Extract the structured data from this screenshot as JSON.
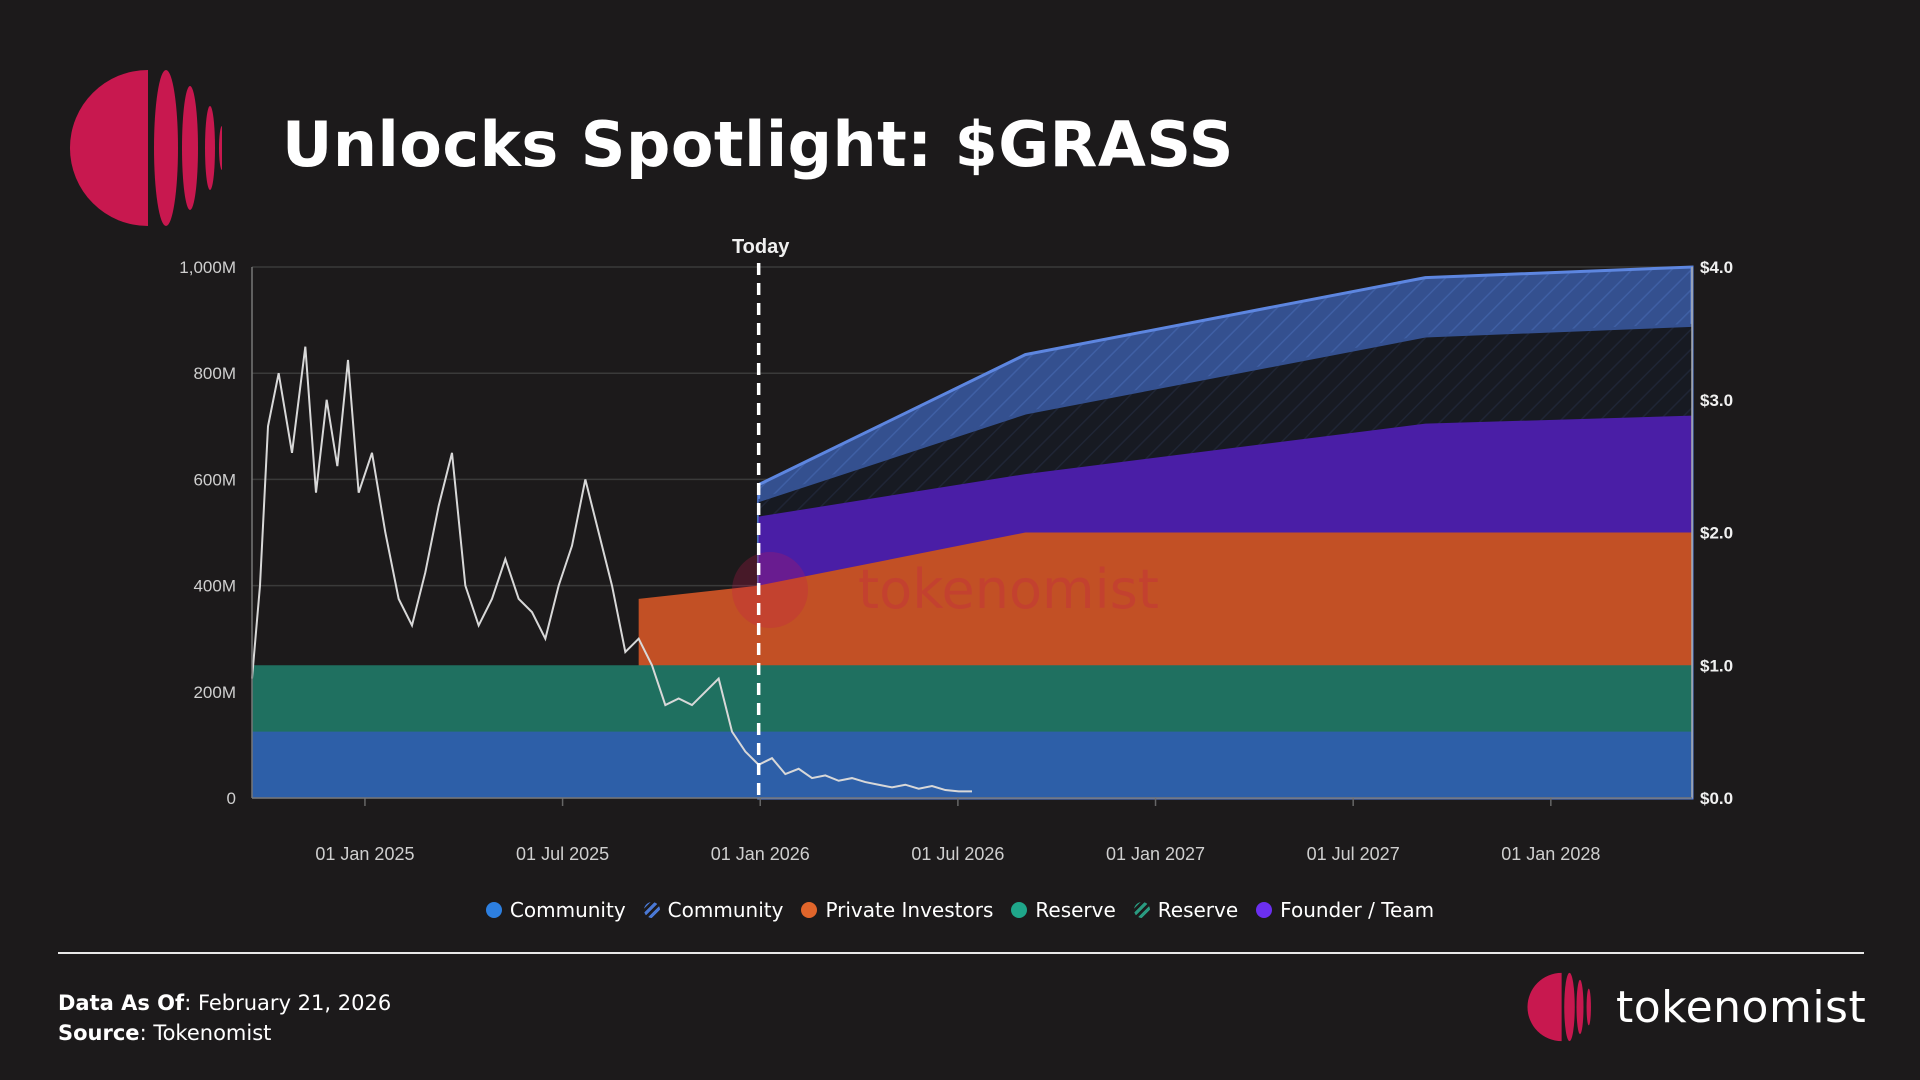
{
  "header": {
    "title": "Unlocks Spotlight: $GRASS"
  },
  "colors": {
    "background": "#1c1a1b",
    "brand_crimson": "#c8184f",
    "community": "#2d5fa8",
    "private_investors": "#c25025",
    "reserve": "#1f7060",
    "founder_team": "#4a1ea6"
  },
  "chart_data": {
    "type": "area",
    "today_label": "Today",
    "y_left_ticks": [
      "0",
      "200M",
      "400M",
      "600M",
      "800M",
      "1,000M"
    ],
    "y_right_ticks": [
      "$0.0",
      "$1.0",
      "$2.0",
      "$3.0",
      "$4.0"
    ],
    "x_ticks": [
      "01 Jan 2025",
      "01 Jul 2025",
      "01 Jan 2026",
      "01 Jul 2026",
      "01 Jan 2027",
      "01 Jul 2027",
      "01 Jan 2028"
    ],
    "ylim_left": [
      0,
      1000
    ],
    "ylim_right": [
      0,
      4
    ],
    "watermark": "tokenomist",
    "series": [
      {
        "name": "Community",
        "style": "solid",
        "values": [
          [
            0,
            125
          ],
          [
            54,
            125
          ]
        ]
      },
      {
        "name": "Reserve",
        "style": "solid",
        "values": [
          [
            0,
            250
          ],
          [
            54,
            250
          ]
        ]
      },
      {
        "name": "Private Investors",
        "style": "solid",
        "values": [
          [
            14.5,
            250
          ],
          [
            14.5,
            375
          ],
          [
            19,
            400
          ],
          [
            29,
            500
          ],
          [
            54,
            500
          ]
        ]
      },
      {
        "name": "Founder / Team",
        "style": "solid",
        "values": [
          [
            19,
            480
          ],
          [
            19,
            530
          ],
          [
            29,
            610
          ],
          [
            44,
            705
          ],
          [
            54,
            720
          ]
        ]
      },
      {
        "name": "Reserve",
        "style": "hatched",
        "values": [
          [
            19,
            560
          ],
          [
            29,
            725
          ],
          [
            44,
            870
          ],
          [
            54,
            890
          ]
        ]
      },
      {
        "name": "Community",
        "style": "hatched",
        "values": [
          [
            19,
            590
          ],
          [
            29,
            835
          ],
          [
            44,
            980
          ],
          [
            54,
            1000
          ]
        ]
      }
    ],
    "price_line": {
      "unit": "$",
      "values": [
        [
          0,
          0.9
        ],
        [
          0.3,
          1.6
        ],
        [
          0.6,
          2.8
        ],
        [
          1.0,
          3.2
        ],
        [
          1.5,
          2.6
        ],
        [
          2.0,
          3.4
        ],
        [
          2.4,
          2.3
        ],
        [
          2.8,
          3.0
        ],
        [
          3.2,
          2.5
        ],
        [
          3.6,
          3.3
        ],
        [
          4.0,
          2.3
        ],
        [
          4.5,
          2.6
        ],
        [
          5.0,
          2.0
        ],
        [
          5.5,
          1.5
        ],
        [
          6.0,
          1.3
        ],
        [
          6.5,
          1.7
        ],
        [
          7.0,
          2.2
        ],
        [
          7.5,
          2.6
        ],
        [
          8.0,
          1.6
        ],
        [
          8.5,
          1.3
        ],
        [
          9.0,
          1.5
        ],
        [
          9.5,
          1.8
        ],
        [
          10.0,
          1.5
        ],
        [
          10.5,
          1.4
        ],
        [
          11.0,
          1.2
        ],
        [
          11.5,
          1.6
        ],
        [
          12.0,
          1.9
        ],
        [
          12.5,
          2.4
        ],
        [
          13.0,
          2.0
        ],
        [
          13.5,
          1.6
        ],
        [
          14.0,
          1.1
        ],
        [
          14.5,
          1.2
        ],
        [
          15.0,
          1.0
        ],
        [
          15.5,
          0.7
        ],
        [
          16.0,
          0.75
        ],
        [
          16.5,
          0.7
        ],
        [
          17.0,
          0.8
        ],
        [
          17.5,
          0.9
        ],
        [
          18.0,
          0.5
        ],
        [
          18.5,
          0.35
        ],
        [
          19.0,
          0.25
        ],
        [
          19.5,
          0.3
        ],
        [
          20.0,
          0.18
        ],
        [
          20.5,
          0.22
        ],
        [
          21.0,
          0.15
        ],
        [
          21.5,
          0.17
        ],
        [
          22.0,
          0.13
        ],
        [
          22.5,
          0.15
        ],
        [
          23.0,
          0.12
        ],
        [
          23.5,
          0.1
        ],
        [
          24.0,
          0.08
        ],
        [
          24.5,
          0.1
        ],
        [
          25.0,
          0.07
        ],
        [
          25.5,
          0.09
        ],
        [
          26.0,
          0.06
        ],
        [
          26.5,
          0.05
        ],
        [
          27.0,
          0.05
        ]
      ]
    }
  },
  "legend": [
    {
      "label": "Community",
      "color": "#2d7fe0",
      "style": "solid"
    },
    {
      "label": "Community",
      "color": "#4a78d4",
      "style": "hatched"
    },
    {
      "label": "Private Investors",
      "color": "#e0652b",
      "style": "solid"
    },
    {
      "label": "Reserve",
      "color": "#1fa68a",
      "style": "solid"
    },
    {
      "label": "Reserve",
      "color": "#2a9a80",
      "style": "hatched"
    },
    {
      "label": "Founder / Team",
      "color": "#6b2ff0",
      "style": "solid"
    }
  ],
  "footer": {
    "data_as_of_label": "Data As Of",
    "data_as_of_value": ": February 21, 2026",
    "source_label": "Source",
    "source_value": ": Tokenomist",
    "brand_name": "tokenomist"
  }
}
